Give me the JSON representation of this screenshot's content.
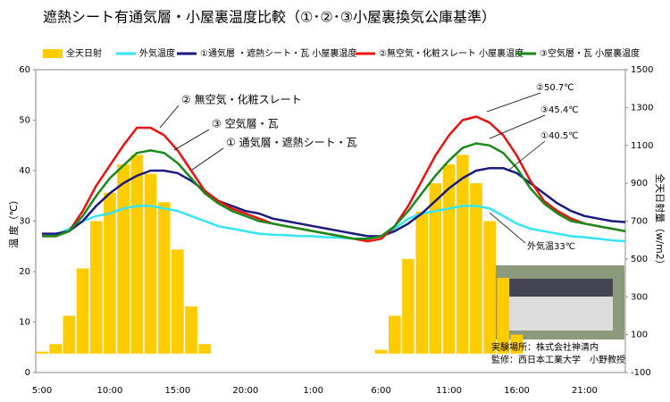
{
  "chart_data": {
    "type": "bar_line",
    "title": "遮熱シート有通気層・小屋裏温度比較（①･②･③小屋裏換気公庫基準）",
    "y_label": "温 度（℃）",
    "y2_label": "全天日射量（w/m2）",
    "categories": [
      "5:00",
      null,
      null,
      null,
      null,
      "10:00",
      null,
      null,
      null,
      null,
      "15:00",
      null,
      null,
      null,
      null,
      "20:00",
      null,
      null,
      null,
      null,
      "1:00",
      null,
      null,
      null,
      null,
      "6:00",
      null,
      null,
      null,
      null,
      "11:00",
      null,
      null,
      null,
      null,
      "16:00",
      null,
      null,
      null,
      null,
      "21:00",
      null,
      null,
      null
    ],
    "ylim": [
      0,
      60
    ],
    "yticks": [
      0,
      10,
      20,
      30,
      40,
      50,
      60
    ],
    "y2lim": [
      -100,
      1500
    ],
    "y2ticks": [
      -100,
      100,
      300,
      500,
      700,
      900,
      1100,
      1300,
      1500
    ],
    "series": [
      {
        "name": "全天日射",
        "kind": "bar",
        "axis": "y2",
        "color": "#ffcc00",
        "values": [
          10,
          50,
          200,
          450,
          700,
          850,
          1000,
          1050,
          950,
          800,
          550,
          250,
          50,
          0,
          0,
          0,
          0,
          0,
          0,
          0,
          0,
          0,
          0,
          0,
          0,
          20,
          200,
          500,
          750,
          900,
          1000,
          1050,
          900,
          700,
          400,
          100,
          0,
          0,
          0,
          0,
          0,
          0,
          0,
          0
        ]
      },
      {
        "name": "外気温度",
        "kind": "line",
        "color": "#33e5f5",
        "values": [
          27,
          27.2,
          28.5,
          30,
          31,
          31.5,
          32.5,
          33,
          33,
          32.5,
          32,
          31,
          30,
          29,
          28.5,
          28,
          27.5,
          27.3,
          27.2,
          27,
          27,
          26.8,
          26.7,
          26.5,
          26.5,
          27,
          28.5,
          30.5,
          31.5,
          32,
          32.5,
          33,
          33,
          32.5,
          31,
          29.5,
          28.5,
          28,
          27.5,
          27,
          26.8,
          26.5,
          26.2,
          26
        ]
      },
      {
        "name": "①通気層 ・遮熱シート・瓦 小屋裏温度",
        "kind": "line",
        "color": "#1a1a80",
        "values": [
          27.5,
          27.5,
          28,
          30,
          33,
          35.5,
          37.5,
          39,
          40,
          40,
          39.5,
          38,
          36,
          34,
          33,
          32,
          31.5,
          30.5,
          30,
          29.5,
          29,
          28.5,
          28,
          27.5,
          27,
          27,
          28,
          29.5,
          31.5,
          34,
          36.5,
          38.5,
          40,
          40.5,
          40.5,
          39.5,
          37.5,
          35.5,
          33.5,
          32,
          31,
          30.5,
          30,
          29.8
        ]
      },
      {
        "name": "②無空気・化粧スレート 小屋裏温度",
        "kind": "line",
        "color": "#ee1111",
        "values": [
          27,
          27,
          28,
          32,
          37,
          41,
          45,
          48.5,
          48.5,
          47,
          44,
          40,
          36,
          34,
          32.5,
          31.5,
          30.5,
          29.5,
          29,
          28.5,
          28,
          27.5,
          27,
          26.5,
          26,
          26.5,
          29,
          33,
          38,
          43,
          47,
          50,
          50.7,
          49.5,
          47,
          43,
          38,
          34,
          32,
          30.5,
          29.5,
          29,
          28.5,
          28
        ]
      },
      {
        "name": "③空気層・瓦 小屋裏温度",
        "kind": "line",
        "color": "#1a8a1a",
        "values": [
          27,
          27,
          28,
          31,
          35,
          38.5,
          41,
          43.5,
          44,
          43.5,
          41.5,
          38.5,
          35.5,
          33.5,
          32,
          31,
          30,
          29.5,
          29,
          28.5,
          28,
          27.5,
          27,
          26.5,
          26.5,
          27,
          29,
          32,
          35.5,
          39,
          42,
          44.5,
          45.4,
          45,
          43.5,
          40.5,
          36.5,
          33.5,
          31.5,
          30,
          29.5,
          29,
          28.5,
          28
        ]
      }
    ],
    "annotations": [
      "② 無空気・化粧スレート",
      "③ 空気層・瓦",
      "① 通気層・遮熱シート・瓦",
      "②50.7℃",
      "③45.4℃",
      "①40.5℃",
      "外気温33℃"
    ],
    "photo_caption": [
      "実験場所：株式会社神清内",
      "監修：西日本工業大学　小野教授"
    ]
  }
}
